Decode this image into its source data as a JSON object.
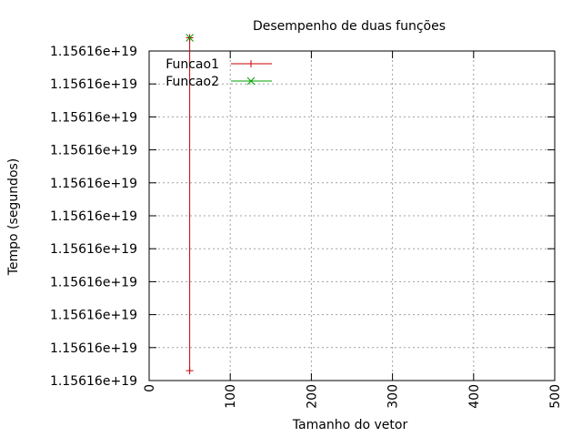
{
  "chart_data": {
    "type": "line",
    "title": "Desempenho de duas funções",
    "xlabel": "Tamanho do vetor",
    "ylabel": "Tempo (segundos)",
    "xlim": [
      0,
      500
    ],
    "ylim": [
      0,
      10
    ],
    "x_ticks": [
      "0",
      "100",
      "200",
      "300",
      "400",
      "500"
    ],
    "y_ticks": [
      "1.15616e+19",
      "1.15616e+19",
      "1.15616e+19",
      "1.15616e+19",
      "1.15616e+19",
      "1.15616e+19",
      "1.15616e+19",
      "1.15616e+19",
      "1.15616e+19",
      "1.15616e+19",
      "1.15616e+19"
    ],
    "grid": true,
    "legend_position": "top-left",
    "series": [
      {
        "name": "Funcao1",
        "color": "#cc0000",
        "marker": "plus",
        "x": [
          50,
          50
        ],
        "y": [
          0.3,
          10.4
        ]
      },
      {
        "name": "Funcao2",
        "color": "#00a000",
        "marker": "cross",
        "x": [
          50
        ],
        "y": [
          10.4
        ]
      }
    ]
  }
}
